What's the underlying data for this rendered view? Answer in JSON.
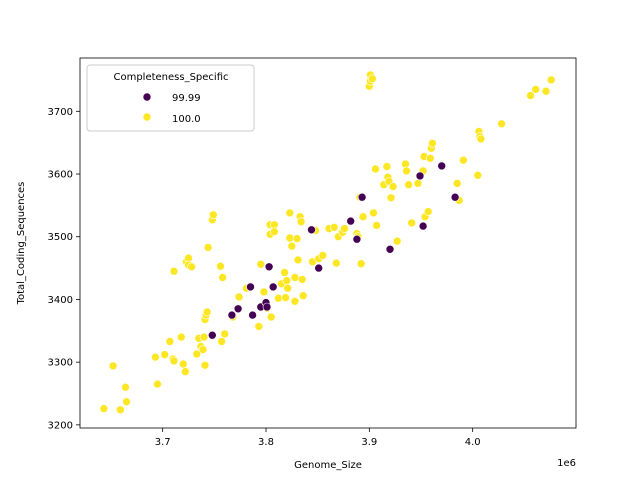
{
  "chart_data": {
    "type": "scatter",
    "title": "",
    "xlabel": "Genome_Size",
    "ylabel": "Total_Coding_Sequences",
    "x_offset_label": "1e6",
    "xlim": [
      3.62,
      4.1
    ],
    "ylim": [
      3195,
      3785
    ],
    "x_ticks": [
      3.7,
      3.8,
      3.9,
      4.0
    ],
    "x_tick_labels": [
      "3.7",
      "3.8",
      "3.9",
      "4.0"
    ],
    "y_ticks": [
      3200,
      3300,
      3400,
      3500,
      3600,
      3700
    ],
    "y_tick_labels": [
      "3200",
      "3300",
      "3400",
      "3500",
      "3600",
      "3700"
    ],
    "grid": false,
    "legend": {
      "title": "Completeness_Specific",
      "placement": "top-left",
      "entries": [
        {
          "label": "99.99",
          "color": "#440154"
        },
        {
          "label": "100.0",
          "color": "#fde725"
        }
      ]
    },
    "series": [
      {
        "name": "99.99",
        "color": "#440154",
        "points": [
          [
            3.748,
            3343
          ],
          [
            3.767,
            3375
          ],
          [
            3.773,
            3385
          ],
          [
            3.785,
            3420
          ],
          [
            3.787,
            3375
          ],
          [
            3.795,
            3388
          ],
          [
            3.8,
            3395
          ],
          [
            3.801,
            3388
          ],
          [
            3.803,
            3452
          ],
          [
            3.807,
            3420
          ],
          [
            3.844,
            3511
          ],
          [
            3.851,
            3450
          ],
          [
            3.882,
            3525
          ],
          [
            3.888,
            3496
          ],
          [
            3.893,
            3563
          ],
          [
            3.92,
            3480
          ],
          [
            3.949,
            3597
          ],
          [
            3.952,
            3517
          ],
          [
            3.97,
            3613
          ],
          [
            3.983,
            3563
          ]
        ]
      },
      {
        "name": "100.0",
        "color": "#fde725",
        "points": [
          [
            3.643,
            3226
          ],
          [
            3.652,
            3294
          ],
          [
            3.659,
            3224
          ],
          [
            3.664,
            3260
          ],
          [
            3.665,
            3237
          ],
          [
            3.693,
            3308
          ],
          [
            3.695,
            3265
          ],
          [
            3.702,
            3312
          ],
          [
            3.707,
            3333
          ],
          [
            3.71,
            3305
          ],
          [
            3.711,
            3302
          ],
          [
            3.711,
            3445
          ],
          [
            3.718,
            3340
          ],
          [
            3.72,
            3297
          ],
          [
            3.722,
            3285
          ],
          [
            3.723,
            3460
          ],
          [
            3.725,
            3466
          ],
          [
            3.725,
            3455
          ],
          [
            3.728,
            3452
          ],
          [
            3.733,
            3313
          ],
          [
            3.735,
            3338
          ],
          [
            3.737,
            3325
          ],
          [
            3.739,
            3320
          ],
          [
            3.74,
            3340
          ],
          [
            3.741,
            3295
          ],
          [
            3.741,
            3368
          ],
          [
            3.742,
            3375
          ],
          [
            3.743,
            3380
          ],
          [
            3.744,
            3483
          ],
          [
            3.748,
            3527
          ],
          [
            3.749,
            3535
          ],
          [
            3.756,
            3453
          ],
          [
            3.757,
            3333
          ],
          [
            3.758,
            3435
          ],
          [
            3.76,
            3345
          ],
          [
            3.768,
            3372
          ],
          [
            3.774,
            3404
          ],
          [
            3.781,
            3418
          ],
          [
            3.793,
            3357
          ],
          [
            3.795,
            3456
          ],
          [
            3.798,
            3412
          ],
          [
            3.801,
            3386
          ],
          [
            3.804,
            3519
          ],
          [
            3.804,
            3504
          ],
          [
            3.805,
            3372
          ],
          [
            3.808,
            3519
          ],
          [
            3.808,
            3508
          ],
          [
            3.812,
            3402
          ],
          [
            3.815,
            3425
          ],
          [
            3.818,
            3443
          ],
          [
            3.819,
            3403
          ],
          [
            3.82,
            3430
          ],
          [
            3.821,
            3418
          ],
          [
            3.823,
            3498
          ],
          [
            3.823,
            3538
          ],
          [
            3.825,
            3485
          ],
          [
            3.828,
            3435
          ],
          [
            3.828,
            3397
          ],
          [
            3.83,
            3497
          ],
          [
            3.831,
            3463
          ],
          [
            3.833,
            3532
          ],
          [
            3.834,
            3524
          ],
          [
            3.835,
            3432
          ],
          [
            3.836,
            3406
          ],
          [
            3.845,
            3460
          ],
          [
            3.848,
            3510
          ],
          [
            3.851,
            3465
          ],
          [
            3.855,
            3470
          ],
          [
            3.861,
            3513
          ],
          [
            3.866,
            3515
          ],
          [
            3.868,
            3458
          ],
          [
            3.87,
            3500
          ],
          [
            3.874,
            3507
          ],
          [
            3.876,
            3513
          ],
          [
            3.888,
            3505
          ],
          [
            3.889,
            3500
          ],
          [
            3.891,
            3563
          ],
          [
            3.892,
            3457
          ],
          [
            3.894,
            3532
          ],
          [
            3.9,
            3740
          ],
          [
            3.901,
            3748
          ],
          [
            3.901,
            3758
          ],
          [
            3.903,
            3752
          ],
          [
            3.904,
            3538
          ],
          [
            3.906,
            3608
          ],
          [
            3.907,
            3518
          ],
          [
            3.914,
            3583
          ],
          [
            3.917,
            3612
          ],
          [
            3.918,
            3595
          ],
          [
            3.919,
            3588
          ],
          [
            3.921,
            3562
          ],
          [
            3.923,
            3580
          ],
          [
            3.927,
            3493
          ],
          [
            3.935,
            3616
          ],
          [
            3.936,
            3605
          ],
          [
            3.938,
            3583
          ],
          [
            3.941,
            3522
          ],
          [
            3.947,
            3585
          ],
          [
            3.952,
            3605
          ],
          [
            3.953,
            3628
          ],
          [
            3.954,
            3532
          ],
          [
            3.957,
            3540
          ],
          [
            3.959,
            3625
          ],
          [
            3.96,
            3641
          ],
          [
            3.961,
            3649
          ],
          [
            3.985,
            3585
          ],
          [
            3.987,
            3558
          ],
          [
            3.991,
            3622
          ],
          [
            4.005,
            3598
          ],
          [
            4.006,
            3668
          ],
          [
            4.007,
            3660
          ],
          [
            4.008,
            3656
          ],
          [
            4.028,
            3680
          ],
          [
            4.056,
            3725
          ],
          [
            4.061,
            3735
          ],
          [
            4.071,
            3732
          ],
          [
            4.076,
            3750
          ]
        ]
      }
    ]
  }
}
